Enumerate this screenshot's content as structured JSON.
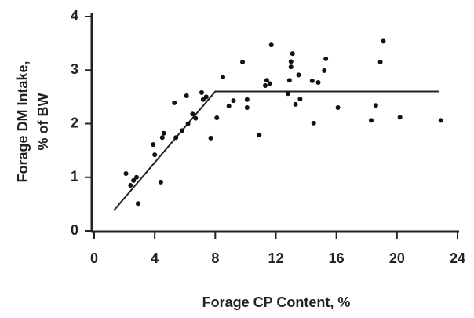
{
  "chart_data": {
    "type": "scatter",
    "xlabel": "Forage CP Content, %",
    "ylabel": [
      "Forage DM Intake,",
      "% of BW"
    ],
    "xlim": [
      0,
      24
    ],
    "xticks": [
      0,
      4,
      8,
      12,
      16,
      20,
      24
    ],
    "ylim": [
      0,
      4
    ],
    "yticks": [
      0,
      1,
      2,
      3,
      4
    ],
    "color": "#111111",
    "x": [
      2.1,
      2.4,
      2.6,
      2.8,
      2.9,
      3.9,
      4.0,
      4.4,
      4.5,
      4.6,
      5.3,
      5.4,
      5.8,
      6.1,
      6.2,
      6.5,
      6.7,
      7.1,
      7.2,
      7.4,
      7.7,
      8.1,
      8.5,
      8.9,
      9.2,
      9.8,
      10.1,
      10.1,
      10.9,
      11.3,
      11.4,
      11.6,
      11.7,
      12.8,
      12.9,
      13.0,
      13.0,
      13.1,
      13.3,
      13.5,
      13.6,
      14.4,
      14.5,
      14.8,
      15.2,
      15.3,
      16.1,
      18.3,
      18.6,
      18.9,
      19.1,
      20.2,
      22.9
    ],
    "values": [
      1.07,
      0.85,
      0.94,
      1.0,
      0.51,
      1.61,
      1.42,
      0.91,
      1.74,
      1.82,
      2.39,
      1.74,
      1.87,
      2.52,
      2.0,
      2.18,
      2.1,
      2.58,
      2.45,
      2.5,
      1.73,
      2.11,
      2.87,
      2.33,
      2.43,
      3.15,
      2.45,
      2.3,
      1.79,
      2.71,
      2.81,
      2.75,
      3.47,
      2.56,
      2.81,
      3.06,
      3.16,
      3.31,
      2.36,
      2.91,
      2.46,
      2.8,
      2.01,
      2.77,
      2.99,
      3.21,
      2.3,
      2.06,
      2.34,
      3.15,
      3.54,
      2.12,
      2.06
    ],
    "fit_line": {
      "x": [
        1.3,
        8.0,
        22.8
      ],
      "values": [
        0.38,
        2.6,
        2.6
      ],
      "color": "#222222"
    }
  }
}
